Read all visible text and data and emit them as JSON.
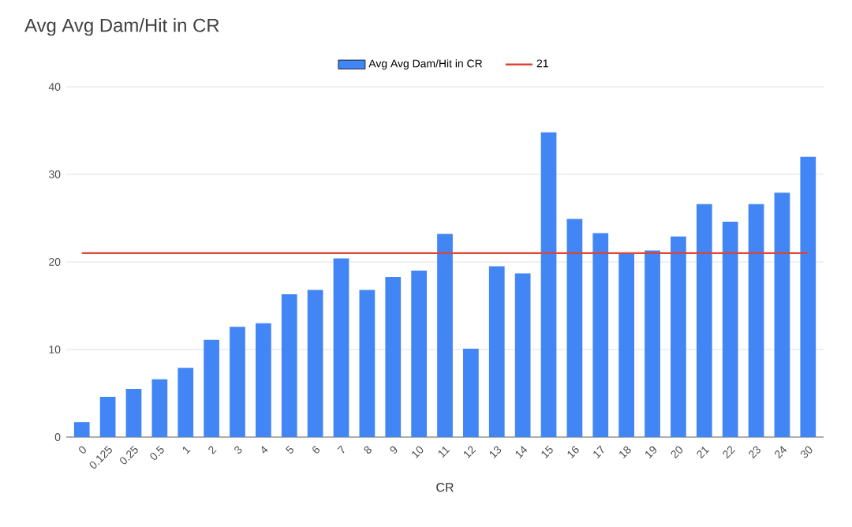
{
  "chart_data": {
    "type": "bar",
    "title": "Avg Avg Dam/Hit in CR",
    "xlabel": "CR",
    "categories": [
      "0",
      "0.125",
      "0.25",
      "0.5",
      "1",
      "2",
      "3",
      "4",
      "5",
      "6",
      "7",
      "8",
      "9",
      "10",
      "11",
      "12",
      "13",
      "14",
      "15",
      "16",
      "17",
      "18",
      "19",
      "20",
      "21",
      "22",
      "23",
      "24",
      "30"
    ],
    "series": [
      {
        "name": "Avg Avg Dam/Hit in CR",
        "color": "#4285f4",
        "values": [
          1.7,
          4.6,
          5.5,
          6.6,
          7.9,
          11.1,
          12.6,
          13.0,
          16.3,
          16.8,
          20.4,
          16.8,
          18.3,
          19.0,
          23.2,
          10.1,
          19.5,
          18.7,
          34.8,
          24.9,
          23.3,
          21.0,
          21.3,
          22.9,
          26.6,
          24.6,
          26.6,
          27.9,
          32.0
        ]
      },
      {
        "name": "21",
        "type": "line",
        "color": "#db4437",
        "values": [
          21,
          21,
          21,
          21,
          21,
          21,
          21,
          21,
          21,
          21,
          21,
          21,
          21,
          21,
          21,
          21,
          21,
          21,
          21,
          21,
          21,
          21,
          21,
          21,
          21,
          21,
          21,
          21,
          21
        ]
      }
    ],
    "ylim": [
      0,
      40
    ],
    "yticks": [
      0,
      10,
      20,
      30,
      40
    ],
    "grid": "y",
    "legend": "top",
    "marker": "none"
  }
}
